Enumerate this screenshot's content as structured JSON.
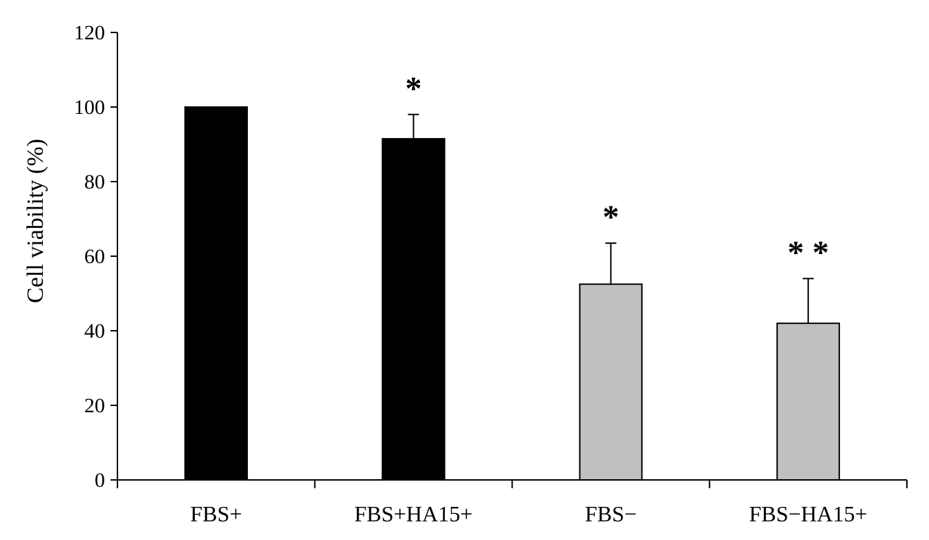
{
  "chart_data": {
    "type": "bar",
    "title": "",
    "xlabel": "",
    "ylabel": "Cell viability (%)",
    "ylim": [
      0,
      120
    ],
    "yticks": [
      0,
      20,
      40,
      60,
      80,
      100,
      120
    ],
    "grid": false,
    "legend": "none",
    "categories": [
      "FBS+",
      "FBS+HA15+",
      "FBS−",
      "FBS−HA15+"
    ],
    "values": [
      100,
      91.5,
      52.5,
      42
    ],
    "errors": [
      0,
      6.5,
      11,
      12
    ],
    "significance": [
      "",
      "*",
      "*",
      "* *"
    ],
    "bar_colors": [
      "#000000",
      "#000000",
      "#c0c0c0",
      "#c0c0c0"
    ]
  }
}
